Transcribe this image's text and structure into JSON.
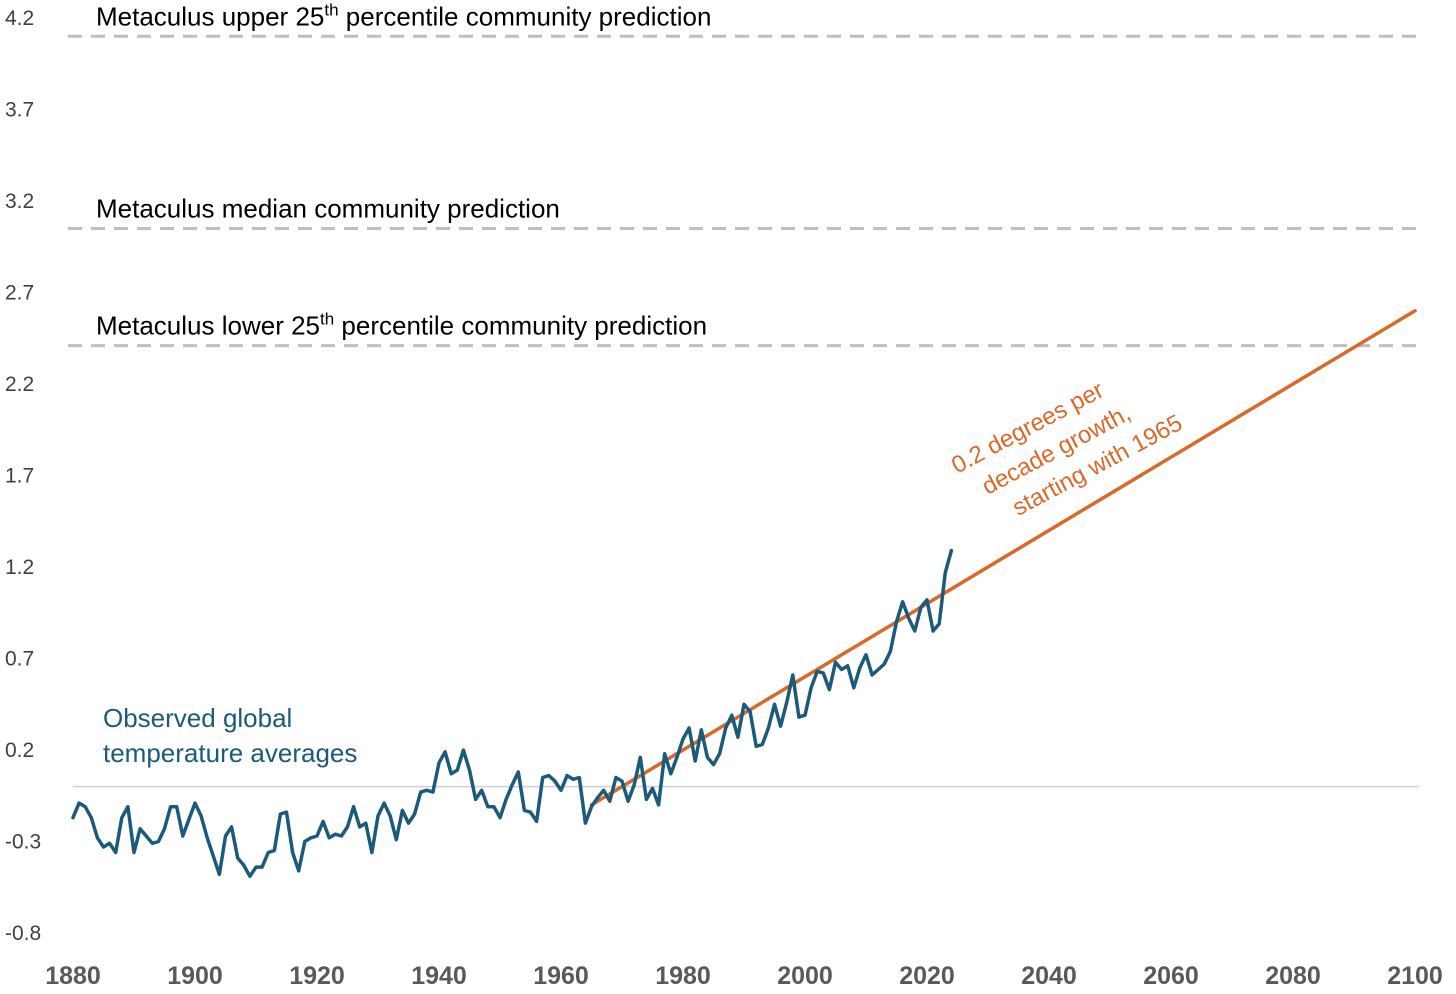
{
  "chart_data": {
    "type": "line",
    "title": "",
    "xlabel": "",
    "ylabel": "",
    "xlim": [
      1880,
      2100
    ],
    "ylim": [
      -0.8,
      4.2
    ],
    "x_ticks": [
      1880,
      1900,
      1920,
      1940,
      1960,
      1980,
      2000,
      2020,
      2040,
      2060,
      2080,
      2100
    ],
    "x_tick_labels": [
      "1880",
      "1900",
      "1920",
      "1940",
      "1960",
      "1980",
      "2000",
      "2020",
      "2040",
      "2060",
      "2080",
      "2100"
    ],
    "y_ticks": [
      -0.8,
      -0.3,
      0.2,
      0.7,
      1.2,
      1.7,
      2.2,
      2.7,
      3.2,
      3.7,
      4.2
    ],
    "y_tick_labels": [
      "-0.8",
      "-0.3",
      "0.2",
      "0.7",
      "1.2",
      "1.7",
      "2.2",
      "2.7",
      "3.2",
      "3.7",
      "4.2"
    ],
    "zero_line": 0,
    "grid": false,
    "reference_lines": [
      {
        "label_main": "Metaculus upper 25",
        "label_sup": "th",
        "label_rest": " percentile community prediction",
        "y": 4.1
      },
      {
        "label_main": "Metaculus median community prediction",
        "label_sup": "",
        "label_rest": "",
        "y": 3.05
      },
      {
        "label_main": "Metaculus lower 25",
        "label_sup": "th",
        "label_rest": " percentile community prediction",
        "y": 2.41
      }
    ],
    "series": [
      {
        "name": "Observed global temperature averages",
        "label_lines": [
          "Observed global",
          "temperature averages"
        ],
        "color": "#1b5a7a",
        "x_start": 1880,
        "values": [
          -0.17,
          -0.09,
          -0.11,
          -0.17,
          -0.28,
          -0.33,
          -0.31,
          -0.36,
          -0.17,
          -0.11,
          -0.36,
          -0.23,
          -0.27,
          -0.31,
          -0.3,
          -0.23,
          -0.11,
          -0.11,
          -0.27,
          -0.18,
          -0.09,
          -0.16,
          -0.28,
          -0.38,
          -0.48,
          -0.27,
          -0.22,
          -0.39,
          -0.43,
          -0.49,
          -0.44,
          -0.44,
          -0.36,
          -0.35,
          -0.15,
          -0.14,
          -0.36,
          -0.46,
          -0.3,
          -0.28,
          -0.27,
          -0.19,
          -0.28,
          -0.26,
          -0.27,
          -0.22,
          -0.11,
          -0.22,
          -0.2,
          -0.36,
          -0.16,
          -0.09,
          -0.16,
          -0.29,
          -0.13,
          -0.2,
          -0.15,
          -0.03,
          -0.02,
          -0.03,
          0.13,
          0.19,
          0.07,
          0.09,
          0.2,
          0.09,
          -0.07,
          -0.02,
          -0.11,
          -0.11,
          -0.17,
          -0.07,
          0.01,
          0.08,
          -0.13,
          -0.14,
          -0.19,
          0.05,
          0.06,
          0.03,
          -0.02,
          0.06,
          0.04,
          0.05,
          -0.2,
          -0.11,
          -0.06,
          -0.02,
          -0.08,
          0.05,
          0.03,
          -0.08,
          0.01,
          0.16,
          -0.07,
          -0.01,
          -0.1,
          0.18,
          0.07,
          0.16,
          0.26,
          0.32,
          0.14,
          0.31,
          0.16,
          0.12,
          0.18,
          0.32,
          0.39,
          0.27,
          0.45,
          0.41,
          0.22,
          0.23,
          0.32,
          0.45,
          0.33,
          0.46,
          0.61,
          0.38,
          0.39,
          0.54,
          0.63,
          0.62,
          0.53,
          0.68,
          0.64,
          0.66,
          0.54,
          0.65,
          0.72,
          0.61,
          0.64,
          0.67,
          0.74,
          0.9,
          1.01,
          0.92,
          0.85,
          0.98,
          1.02,
          0.85,
          0.89,
          1.17,
          1.29
        ]
      },
      {
        "name": "0.2 degrees per decade growth, starting with 1965",
        "label_lines": [
          "0.2 degrees per",
          "decade growth,",
          "starting with 1965"
        ],
        "color": "#d9692a",
        "x": [
          1965,
          2100
        ],
        "y": [
          -0.1,
          2.6
        ]
      }
    ]
  }
}
